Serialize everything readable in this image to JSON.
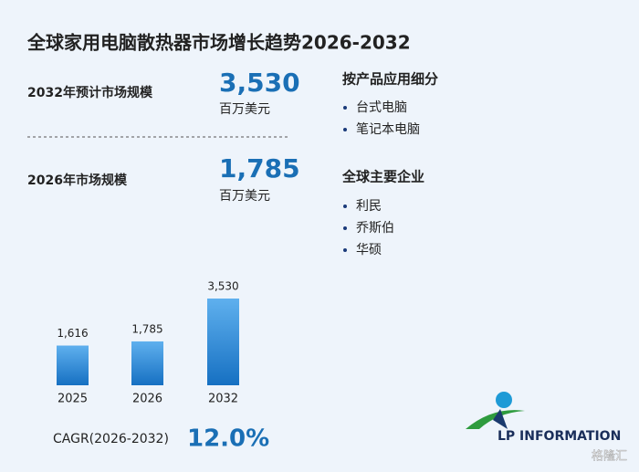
{
  "title": "全球家用电脑散热器市场增长趋势2026-2032",
  "stats": [
    {
      "label": "2032年预计市场规模",
      "value": "3,530",
      "unit": "百万美元"
    },
    {
      "label": "2026年市场规模",
      "value": "1,785",
      "unit": "百万美元"
    }
  ],
  "segments": {
    "heading": "按产品应用细分",
    "items": [
      "台式电脑",
      "笔记本电脑"
    ]
  },
  "companies": {
    "heading": "全球主要企业",
    "items": [
      "利民",
      "乔斯伯",
      "华硕"
    ]
  },
  "cagr": {
    "label": "CAGR(2026-2032)",
    "value": "12.0%"
  },
  "logo": "LP INFORMATION",
  "watermark": "格隆汇",
  "chart_data": {
    "type": "bar",
    "categories": [
      "2025",
      "2026",
      "2032"
    ],
    "values": [
      1616,
      1785,
      3530
    ],
    "value_labels": [
      "1,616",
      "1,785",
      "3,530"
    ],
    "color": "#1f7fd0"
  }
}
